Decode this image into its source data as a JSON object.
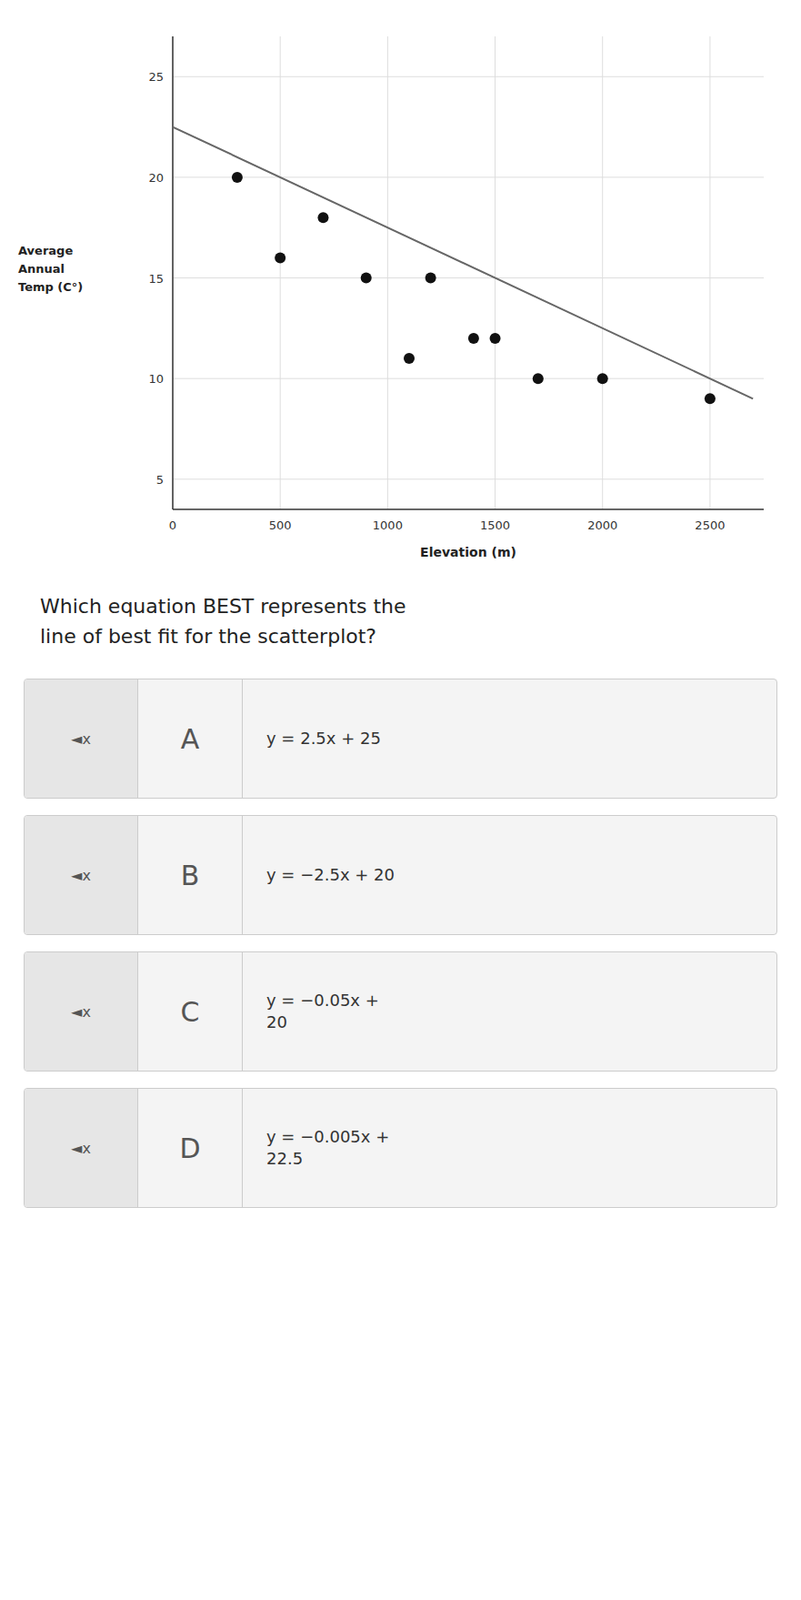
{
  "chart_data": {
    "type": "scatter",
    "xlabel": "Elevation (m)",
    "ylabel": "Average\nAnnual\nTemp (C°)",
    "series": [
      {
        "type": "scatter",
        "color": "#111111",
        "x": [
          300,
          500,
          700,
          900,
          1100,
          1200,
          1400,
          1500,
          1700,
          2000,
          2500
        ],
        "values": [
          20,
          16,
          18,
          15,
          11,
          15,
          12,
          12,
          10,
          10,
          9
        ]
      },
      {
        "type": "line",
        "color": "#666666",
        "x": [
          0,
          2700
        ],
        "values": [
          22.5,
          9.0
        ]
      }
    ],
    "xlim": [
      0,
      2750
    ],
    "ylim": [
      3.5,
      27
    ],
    "xticks": [
      0,
      500,
      1000,
      1500,
      2000,
      2500
    ],
    "yticks": [
      5,
      10,
      15,
      20,
      25
    ],
    "grid": true,
    "question": "Which equation BEST represents the\nline of best fit for the scatterplot?",
    "option_icon": "◄x",
    "options": [
      {
        "letter": "A",
        "text": "y = 2.5x + 25"
      },
      {
        "letter": "B",
        "text": "y = −2.5x + 20"
      },
      {
        "letter": "C",
        "text": "y = −0.05x +\n20"
      },
      {
        "letter": "D",
        "text": "y = −0.005x +\n22.5"
      }
    ]
  }
}
